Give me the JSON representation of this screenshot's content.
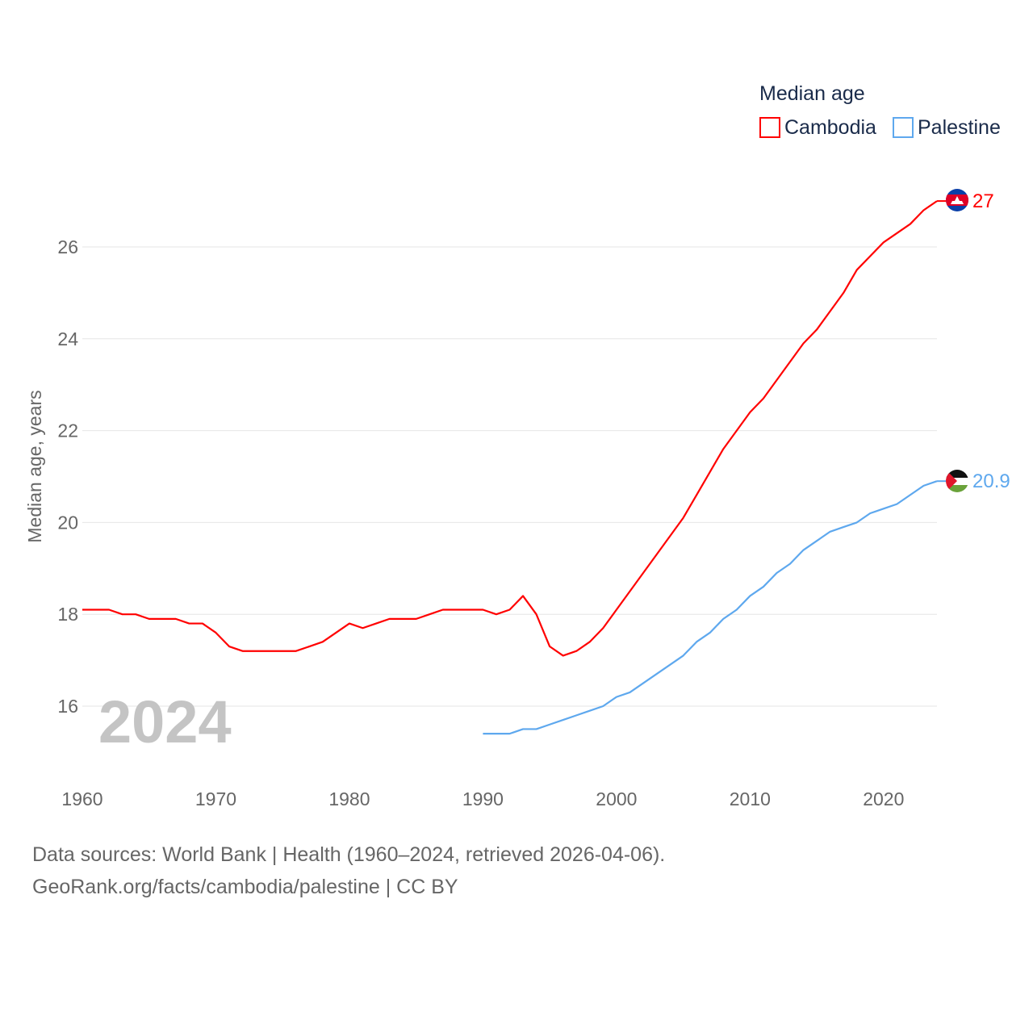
{
  "chart_data": {
    "type": "line",
    "title": "Median age",
    "ylabel": "Median age, years",
    "xlabel": "",
    "xlim": [
      1960,
      2024
    ],
    "ylim": [
      15,
      27.5
    ],
    "yticks": [
      16,
      18,
      20,
      22,
      24,
      26
    ],
    "xticks": [
      1960,
      1970,
      1980,
      1990,
      2000,
      2010,
      2020
    ],
    "grid": true,
    "legend_placement": "top-right",
    "year_watermark": "2024",
    "series": [
      {
        "name": "Cambodia",
        "color": "#ff0000",
        "end_label": "27",
        "x": [
          1960,
          1961,
          1962,
          1963,
          1964,
          1965,
          1966,
          1967,
          1968,
          1969,
          1970,
          1971,
          1972,
          1973,
          1974,
          1975,
          1976,
          1977,
          1978,
          1979,
          1980,
          1981,
          1982,
          1983,
          1984,
          1985,
          1986,
          1987,
          1988,
          1989,
          1990,
          1991,
          1992,
          1993,
          1994,
          1995,
          1996,
          1997,
          1998,
          1999,
          2000,
          2001,
          2002,
          2003,
          2004,
          2005,
          2006,
          2007,
          2008,
          2009,
          2010,
          2011,
          2012,
          2013,
          2014,
          2015,
          2016,
          2017,
          2018,
          2019,
          2020,
          2021,
          2022,
          2023,
          2024
        ],
        "values": [
          18.1,
          18.1,
          18.1,
          18.0,
          18.0,
          17.9,
          17.9,
          17.9,
          17.8,
          17.8,
          17.6,
          17.3,
          17.2,
          17.2,
          17.2,
          17.2,
          17.2,
          17.3,
          17.4,
          17.6,
          17.8,
          17.7,
          17.8,
          17.9,
          17.9,
          17.9,
          18.0,
          18.1,
          18.1,
          18.1,
          18.1,
          18.0,
          18.1,
          18.4,
          18.0,
          17.3,
          17.1,
          17.2,
          17.4,
          17.7,
          18.1,
          18.5,
          18.9,
          19.3,
          19.7,
          20.1,
          20.6,
          21.1,
          21.6,
          22.0,
          22.4,
          22.7,
          23.1,
          23.5,
          23.9,
          24.2,
          24.6,
          25.0,
          25.5,
          25.8,
          26.1,
          26.3,
          26.5,
          26.8,
          27.0
        ]
      },
      {
        "name": "Palestine",
        "color": "#5ea8ee",
        "end_label": "20.9",
        "x": [
          1990,
          1991,
          1992,
          1993,
          1994,
          1995,
          1996,
          1997,
          1998,
          1999,
          2000,
          2001,
          2002,
          2003,
          2004,
          2005,
          2006,
          2007,
          2008,
          2009,
          2010,
          2011,
          2012,
          2013,
          2014,
          2015,
          2016,
          2017,
          2018,
          2019,
          2020,
          2021,
          2022,
          2023,
          2024
        ],
        "values": [
          15.4,
          15.4,
          15.4,
          15.5,
          15.5,
          15.6,
          15.7,
          15.8,
          15.9,
          16.0,
          16.2,
          16.3,
          16.5,
          16.7,
          16.9,
          17.1,
          17.4,
          17.6,
          17.9,
          18.1,
          18.4,
          18.6,
          18.9,
          19.1,
          19.4,
          19.6,
          19.8,
          19.9,
          20.0,
          20.2,
          20.3,
          20.4,
          20.6,
          20.8,
          20.9
        ]
      }
    ]
  },
  "footer": {
    "line1": "Data sources: World Bank | Health (1960–2024, retrieved 2026-04-06).",
    "line2": "GeoRank.org/facts/cambodia/palestine | CC BY"
  }
}
